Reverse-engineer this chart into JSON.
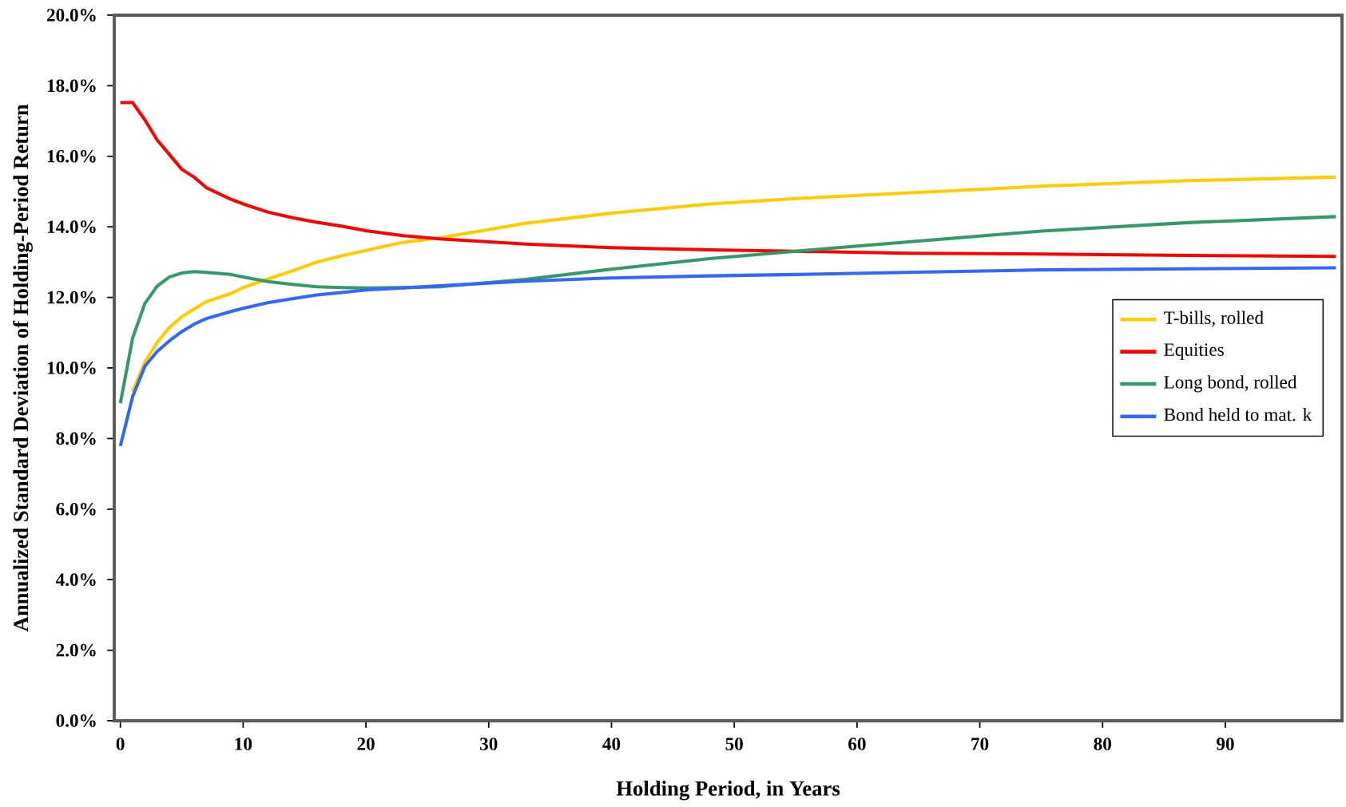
{
  "chart_data": {
    "type": "line",
    "xlabel": "Holding Period, in Years",
    "ylabel": "Annualized Standard Deviation of Holding-Period Return",
    "x": [
      0,
      1,
      2,
      3,
      4,
      5,
      6,
      7,
      9,
      10,
      12,
      14,
      16,
      18,
      20,
      23,
      26,
      33,
      40,
      48,
      55,
      64,
      75,
      87,
      99
    ],
    "xlim": [
      -0.5,
      99.5
    ],
    "xticks": [
      0,
      10,
      20,
      30,
      40,
      50,
      60,
      70,
      80,
      90
    ],
    "ylim": [
      0,
      20
    ],
    "yticks": [
      {
        "value": 0,
        "label": "0.0%"
      },
      {
        "value": 2,
        "label": "2.0%"
      },
      {
        "value": 4,
        "label": "4.0%"
      },
      {
        "value": 6,
        "label": "6.0%"
      },
      {
        "value": 8,
        "label": "8.0%"
      },
      {
        "value": 10,
        "label": "10.0%"
      },
      {
        "value": 12,
        "label": "12.0%"
      },
      {
        "value": 14,
        "label": "14.0%"
      },
      {
        "value": 16,
        "label": "16.0%"
      },
      {
        "value": 18,
        "label": "18.0%"
      },
      {
        "value": 20,
        "label": "20.0%"
      }
    ],
    "grid": false,
    "legend": "right",
    "marker": "none",
    "line_style": "solid",
    "series": [
      {
        "name": "T-bills, rolled",
        "color": "#ffcc00",
        "values": [
          null,
          9.34,
          10.17,
          10.73,
          11.15,
          11.45,
          11.67,
          11.88,
          12.11,
          12.28,
          12.52,
          12.75,
          13.0,
          13.18,
          13.33,
          13.56,
          13.69,
          14.1,
          14.39,
          14.65,
          14.8,
          14.96,
          15.15,
          15.31,
          15.41
        ]
      },
      {
        "name": "Equities",
        "color": "#ff0000",
        "values": [
          17.52,
          17.52,
          17.03,
          16.46,
          16.05,
          15.63,
          15.41,
          15.11,
          14.78,
          14.65,
          14.42,
          14.26,
          14.13,
          14.02,
          13.89,
          13.75,
          13.66,
          13.51,
          13.41,
          13.35,
          13.31,
          13.25,
          13.23,
          13.19,
          13.16
        ]
      },
      {
        "name": "Long bond, rolled",
        "color": "#339966",
        "values": [
          9.0,
          10.85,
          11.83,
          12.32,
          12.58,
          12.69,
          12.73,
          12.71,
          12.65,
          12.58,
          12.45,
          12.37,
          12.3,
          12.28,
          12.27,
          12.28,
          12.3,
          12.51,
          12.8,
          13.1,
          13.31,
          13.57,
          13.88,
          14.12,
          14.29
        ]
      },
      {
        "name": "Bond held to mat. k",
        "color": "#3366ff",
        "values": [
          7.79,
          9.19,
          10.05,
          10.47,
          10.77,
          11.03,
          11.24,
          11.4,
          11.6,
          11.69,
          11.85,
          11.96,
          12.07,
          12.14,
          12.21,
          12.27,
          12.33,
          12.46,
          12.55,
          12.61,
          12.65,
          12.71,
          12.78,
          12.81,
          12.84
        ]
      }
    ]
  }
}
